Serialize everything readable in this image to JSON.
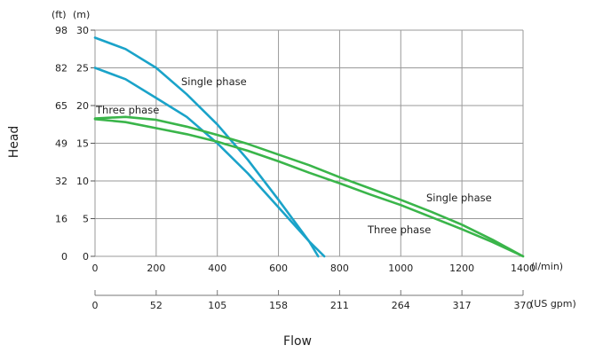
{
  "chart_data": {
    "type": "line",
    "ylabel": "Head",
    "xlabel": "Flow",
    "units": {
      "y_ft": "(ft)",
      "y_m": "(m)",
      "x_lmin": "(l/min)",
      "x_usgpm": "(US gpm)"
    },
    "x_lmin_ticks": [
      "0",
      "200",
      "400",
      "600",
      "800",
      "1000",
      "1200",
      "1400"
    ],
    "x_usgpm_ticks": [
      "0",
      "52",
      "105",
      "158",
      "211",
      "264",
      "317",
      "370"
    ],
    "y_m_ticks": [
      "0",
      "5",
      "10",
      "15",
      "20",
      "25",
      "30"
    ],
    "y_ft_ticks": [
      "0",
      "16",
      "32",
      "49",
      "65",
      "82",
      "98"
    ],
    "xlim": [
      0,
      1400
    ],
    "ylim": [
      0,
      30
    ],
    "grid": true,
    "annotations": {
      "blue_single": "Single phase",
      "blue_three": "Three phase",
      "green_single": "Single phase",
      "green_three": "Three phase"
    },
    "series": [
      {
        "key": "blue_single",
        "color": "#1aa3c9",
        "x": [
          0,
          100,
          200,
          300,
          400,
          500,
          600,
          700,
          750
        ],
        "y": [
          29,
          27.5,
          25,
          21.5,
          17.5,
          12.8,
          7.5,
          2,
          0
        ]
      },
      {
        "key": "blue_three",
        "color": "#1aa3c9",
        "x": [
          0,
          100,
          200,
          300,
          400,
          500,
          600,
          700,
          730
        ],
        "y": [
          25,
          23.5,
          21,
          18.5,
          15,
          11,
          6.5,
          2,
          0
        ]
      },
      {
        "key": "green_single",
        "color": "#3ab54a",
        "x": [
          0,
          100,
          200,
          300,
          400,
          500,
          600,
          700,
          800,
          900,
          1000,
          1100,
          1200,
          1300,
          1400
        ],
        "y": [
          18.3,
          18.5,
          18.1,
          17.2,
          16.1,
          14.9,
          13.5,
          12.1,
          10.5,
          9,
          7.5,
          5.9,
          4.2,
          2.2,
          0
        ]
      },
      {
        "key": "green_three",
        "color": "#3ab54a",
        "x": [
          0,
          100,
          200,
          300,
          400,
          500,
          600,
          700,
          800,
          900,
          1000,
          1100,
          1200,
          1300,
          1400
        ],
        "y": [
          18.2,
          17.8,
          17,
          16.2,
          15.2,
          14,
          12.6,
          11.1,
          9.7,
          8.2,
          6.8,
          5.2,
          3.6,
          1.9,
          0
        ]
      }
    ]
  }
}
